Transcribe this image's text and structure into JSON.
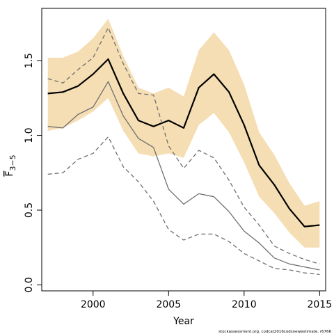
{
  "chart_data": {
    "type": "line",
    "xlabel": "Year",
    "ylabel": "F",
    "ylabel_subscript": "3−5",
    "footnote": "stockassessment.org, codcat2016codsnewestimate, r6766",
    "xlim": [
      1996.6,
      2015.4
    ],
    "ylim": [
      -0.04,
      1.85
    ],
    "xticks": [
      2000,
      2005,
      2010,
      2015
    ],
    "yticks": [
      0.0,
      0.5,
      1.0,
      1.5
    ],
    "xtick_labels": [
      "2000",
      "2005",
      "2010",
      "2015"
    ],
    "ytick_labels": [
      "0.0",
      "0.5",
      "1.0",
      "1.5"
    ],
    "x": [
      1997,
      1998,
      1999,
      2000,
      2001,
      2002,
      2003,
      2004,
      2005,
      2006,
      2007,
      2008,
      2009,
      2010,
      2011,
      2012,
      2013,
      2014,
      2015
    ],
    "band": {
      "color": "#f5deb3",
      "lower": [
        1.03,
        1.05,
        1.1,
        1.16,
        1.25,
        1.03,
        0.88,
        0.86,
        0.88,
        0.85,
        1.07,
        1.15,
        1.02,
        0.82,
        0.59,
        0.48,
        0.35,
        0.25,
        0.25
      ],
      "upper": [
        1.52,
        1.52,
        1.56,
        1.65,
        1.78,
        1.53,
        1.32,
        1.28,
        1.32,
        1.26,
        1.57,
        1.69,
        1.57,
        1.34,
        1.02,
        0.87,
        0.68,
        0.53,
        0.56
      ]
    },
    "series": [
      {
        "style": "solid",
        "color": "#000000",
        "width": 2.2,
        "values": [
          1.28,
          1.29,
          1.33,
          1.41,
          1.51,
          1.28,
          1.1,
          1.06,
          1.1,
          1.05,
          1.32,
          1.41,
          1.29,
          1.07,
          0.8,
          0.67,
          0.51,
          0.39,
          0.4
        ]
      },
      {
        "style": "dashed",
        "color": "#6e6e6e",
        "width": 1.3,
        "values": [
          1.38,
          1.35,
          1.44,
          1.52,
          1.72,
          1.48,
          1.28,
          1.27,
          0.93,
          0.78,
          0.9,
          0.85,
          0.7,
          0.52,
          0.4,
          0.26,
          0.21,
          0.17,
          0.14
        ]
      },
      {
        "style": "solid",
        "color": "#6e6e6e",
        "width": 1.3,
        "values": [
          1.06,
          1.05,
          1.14,
          1.19,
          1.36,
          1.13,
          0.98,
          0.92,
          0.64,
          0.54,
          0.61,
          0.59,
          0.49,
          0.36,
          0.28,
          0.18,
          0.14,
          0.12,
          0.1
        ]
      },
      {
        "style": "dashed",
        "color": "#6e6e6e",
        "width": 1.3,
        "values": [
          0.74,
          0.75,
          0.84,
          0.88,
          0.99,
          0.79,
          0.69,
          0.56,
          0.37,
          0.3,
          0.34,
          0.34,
          0.29,
          0.21,
          0.16,
          0.11,
          0.1,
          0.08,
          0.07
        ]
      }
    ]
  }
}
